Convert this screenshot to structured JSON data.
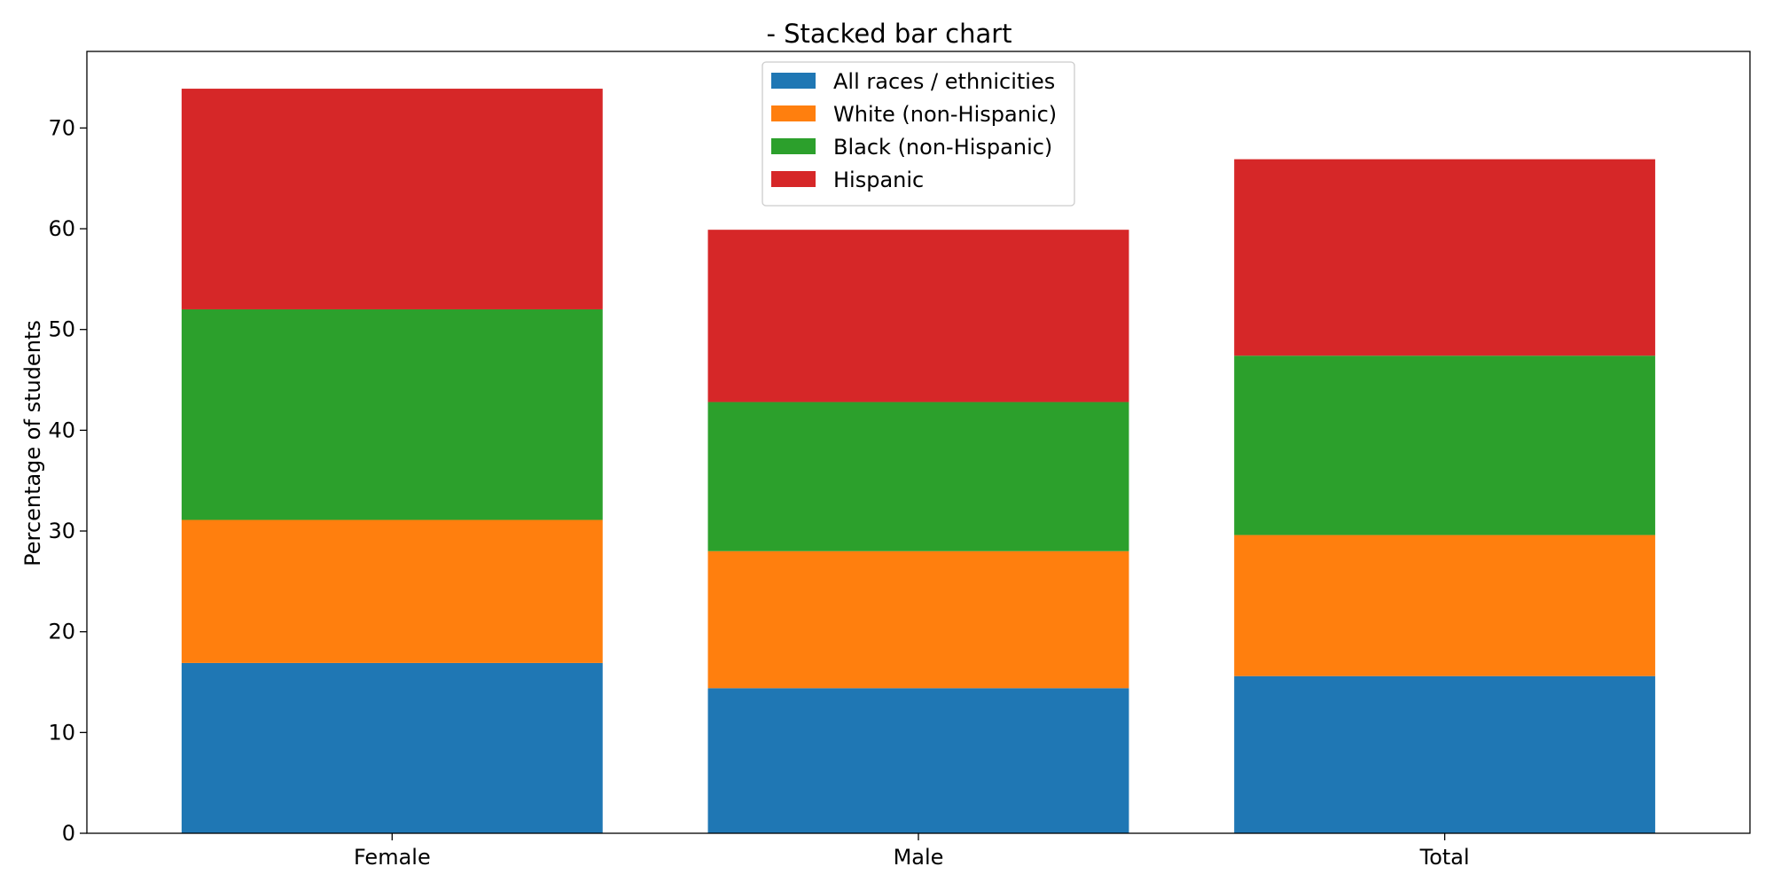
{
  "chart_data": {
    "type": "bar",
    "stacked": true,
    "title": "- Stacked bar chart",
    "xlabel": "",
    "ylabel": "Percentage of students",
    "categories": [
      "Female",
      "Male",
      "Total"
    ],
    "series": [
      {
        "name": "All races / ethnicities",
        "color": "#1f77b4",
        "values": [
          16.9,
          14.4,
          15.6
        ]
      },
      {
        "name": "White (non-Hispanic)",
        "color": "#ff7f0e",
        "values": [
          14.2,
          13.6,
          14.0
        ]
      },
      {
        "name": "Black (non-Hispanic)",
        "color": "#2ca02c",
        "values": [
          20.9,
          14.8,
          17.8
        ]
      },
      {
        "name": "Hispanic",
        "color": "#d62728",
        "values": [
          21.9,
          17.1,
          19.5
        ]
      }
    ],
    "ylim": [
      0,
      77.6
    ],
    "yticks": [
      0,
      10,
      20,
      30,
      40,
      50,
      60,
      70
    ],
    "grid": false,
    "legend_position": "top-center"
  }
}
